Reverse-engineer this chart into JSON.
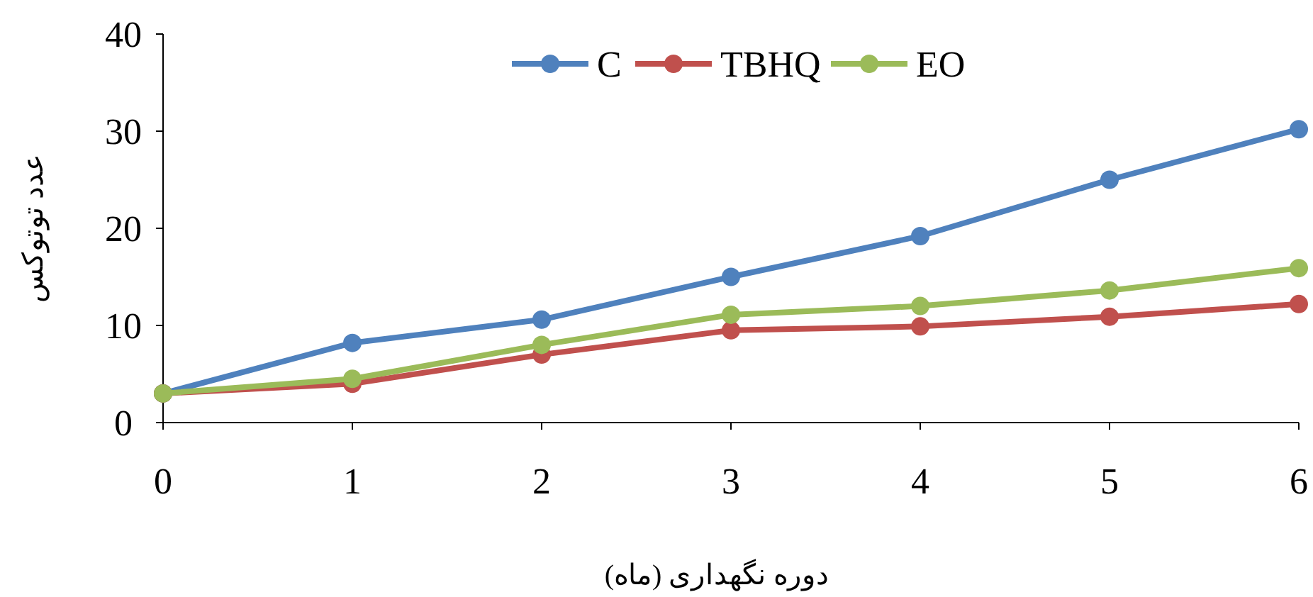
{
  "chart_data": {
    "type": "line",
    "xlabel": "دوره نگهداری (ماه)",
    "ylabel": "عدد توتوکس",
    "x": [
      0,
      1,
      2,
      3,
      4,
      5,
      6
    ],
    "series": [
      {
        "name": "C",
        "color": "#4f81bd",
        "values": [
          3,
          8.2,
          10.6,
          15,
          19.2,
          25,
          30.2
        ]
      },
      {
        "name": "TBHQ",
        "color": "#c0504d",
        "values": [
          3,
          4,
          7,
          9.5,
          9.9,
          10.9,
          12.2
        ]
      },
      {
        "name": "EO",
        "color": "#9bbb59",
        "values": [
          3,
          4.5,
          8,
          11.1,
          12,
          13.6,
          15.9
        ]
      }
    ],
    "xlim": [
      0,
      6
    ],
    "xticks": [
      0,
      1,
      2,
      3,
      4,
      5,
      6
    ],
    "ylim": [
      0,
      40
    ],
    "yticks": [
      0,
      10,
      20,
      30,
      40
    ],
    "marker": "circle",
    "line_style": "solid",
    "grid": false,
    "legend": "top"
  }
}
